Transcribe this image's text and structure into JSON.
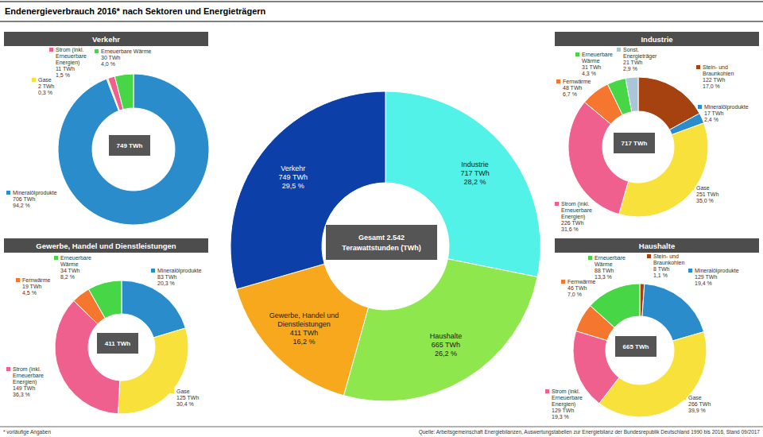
{
  "title": "Endenergieverbrauch 2016* nach Sektoren und Energieträgern",
  "footnote": "* vorläufige Angaben",
  "source": "Quelle: Arbeitsgemeinschaft Energiebilanzen, Auswertungstabellen zur Energiebilanz der Bundesrepublik Deutschland 1990 bis 2016, Stand 09/2017",
  "chart_data": [
    {
      "type": "pie",
      "center_label": [
        "Gesamt 2.542",
        "Terawattstunden (TWh)"
      ],
      "categories": [
        "Industrie",
        "Haushalte",
        "Gewerbe, Handel und Dienstleistungen",
        "Verkehr"
      ],
      "values": [
        28.2,
        26.2,
        16.2,
        29.5
      ],
      "value_labels": [
        "28,2 %",
        "26,2 %",
        "16,2 %",
        "29,5 %"
      ],
      "energy_labels": [
        "717 TWh",
        "665 TWh",
        "411 TWh",
        "749 TWh"
      ],
      "colors": [
        "#52f2e8",
        "#8ee84d",
        "#f8a81c",
        "#0c3fa8"
      ],
      "data_labels": true
    },
    {
      "type": "pie",
      "title": "Verkehr",
      "center_label": [
        "749 TWh"
      ],
      "categories": [
        "Mineralölprodukte",
        "Gase",
        "Strom (inkl. Erneuerbare Energien)",
        "Erneuerbare Wärme"
      ],
      "values": [
        94.2,
        0.3,
        1.5,
        4.0
      ],
      "value_labels": [
        "94,2 %",
        "0,3 %",
        "1,5 %",
        "4,0 %"
      ],
      "energy_labels": [
        "706 TWh",
        "2 TWh",
        "11 TWh",
        "30 TWh"
      ],
      "colors": [
        "#2b8ccc",
        "#f8e13a",
        "#f0608f",
        "#46d646"
      ],
      "data_labels": true
    },
    {
      "type": "pie",
      "title": "Industrie",
      "center_label": [
        "717 TWh"
      ],
      "categories": [
        "Stein- und Braunkohlen",
        "Mineralölprodukte",
        "Gase",
        "Strom (inkl. Erneuerbare Energien)",
        "Fernwärme",
        "Erneuerbare Wärme",
        "Sonst. Energieträger"
      ],
      "values": [
        17.0,
        2.4,
        35.0,
        31.6,
        6.7,
        4.3,
        2.9
      ],
      "value_labels": [
        "17,0 %",
        "2,4 %",
        "35,0 %",
        "31,6 %",
        "6,7 %",
        "4,3 %",
        "2,9 %"
      ],
      "energy_labels": [
        "122 TWh",
        "17 TWh",
        "251 TWh",
        "226 TWh",
        "48 TWh",
        "31 TWh",
        "21 TWh"
      ],
      "colors": [
        "#a5420f",
        "#2b8ccc",
        "#f8e13a",
        "#f0608f",
        "#f5762e",
        "#46d646",
        "#a9c6d8"
      ],
      "data_labels": true
    },
    {
      "type": "pie",
      "title": "Gewerbe, Handel und Dienstleistungen",
      "center_label": [
        "411 TWh"
      ],
      "categories": [
        "Mineralölprodukte",
        "Gase",
        "Strom (inkl. Erneuerbare Energien)",
        "Fernwärme",
        "Erneuerbare Wärme"
      ],
      "values": [
        20.3,
        30.4,
        36.3,
        4.5,
        8.2
      ],
      "value_labels": [
        "20,3 %",
        "30,4 %",
        "36,3 %",
        "4,5 %",
        "8,2 %"
      ],
      "energy_labels": [
        "83 TWh",
        "125 TWh",
        "149 TWh",
        "19 TWh",
        "34 TWh"
      ],
      "colors": [
        "#2b8ccc",
        "#f8e13a",
        "#f0608f",
        "#f5762e",
        "#46d646"
      ],
      "data_labels": true
    },
    {
      "type": "pie",
      "title": "Haushalte",
      "center_label": [
        "665 TWh"
      ],
      "categories": [
        "Stein- und Braunkohlen",
        "Mineralölprodukte",
        "Gase",
        "Strom (inkl. Erneuerbare Energien)",
        "Fernwärme",
        "Erneuerbare Wärme"
      ],
      "values": [
        1.1,
        19.4,
        39.9,
        19.3,
        7.0,
        13.3
      ],
      "value_labels": [
        "1,1 %",
        "19,4 %",
        "39,9 %",
        "19,3 %",
        "7,0 %",
        "13,3 %"
      ],
      "energy_labels": [
        "8 TWh",
        "129 TWh",
        "266 TWh",
        "129 TWh",
        "46 TWh",
        "88 TWh"
      ],
      "colors": [
        "#a5420f",
        "#2b8ccc",
        "#f8e13a",
        "#f0608f",
        "#f5762e",
        "#46d646"
      ],
      "data_labels": true
    }
  ]
}
